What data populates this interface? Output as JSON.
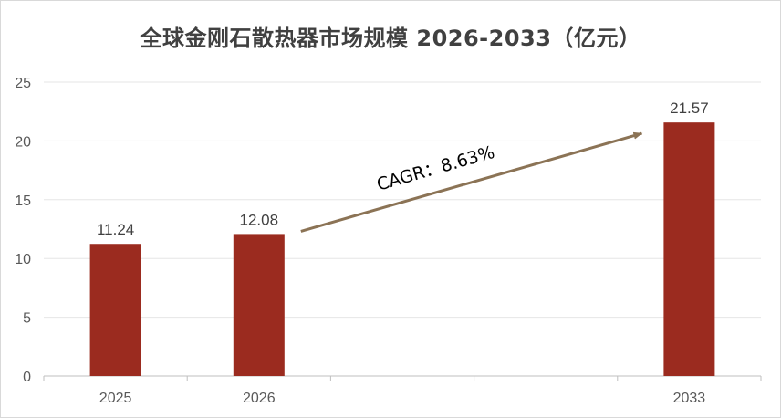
{
  "chart_data": {
    "type": "bar",
    "title": "全球金刚石散热器市场规模 2026-2033（亿元）",
    "categories": [
      "2025",
      "2026",
      "",
      "",
      "2033"
    ],
    "values": [
      11.24,
      12.08,
      null,
      null,
      21.57
    ],
    "data_labels": [
      "11.24",
      "12.08",
      "",
      "",
      "21.57"
    ],
    "ylim": [
      0,
      25
    ],
    "yticks": [
      "0",
      "5",
      "10",
      "15",
      "20",
      "25"
    ],
    "grid": true,
    "bar_color": "#9b2b1f",
    "annotation": {
      "text": "CAGR：8.63%",
      "from_category": "2026",
      "to_category": "2033",
      "arrow_color": "#8b7355"
    },
    "xlabel": "",
    "ylabel": ""
  }
}
